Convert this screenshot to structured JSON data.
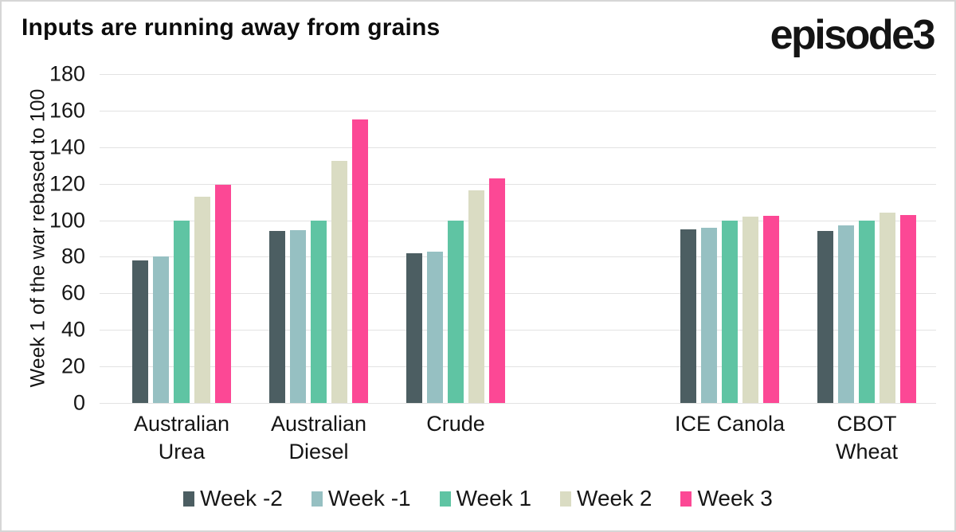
{
  "header": {
    "title": "Inputs are running away from grains",
    "logo_text": "episode3"
  },
  "palette": {
    "background": "#FFFFFF",
    "border": "#D6D6D6",
    "gridline": "#E2E2E2",
    "text": "#141414"
  },
  "chart_data": {
    "type": "bar",
    "title": "Inputs are running away from grains",
    "xlabel": "",
    "ylabel": "Week 1 of the war rebased to 100",
    "ylim": [
      0,
      180
    ],
    "ytick_step": 20,
    "grid": "horizontal",
    "legend_position": "bottom",
    "categories": [
      {
        "name": "Australian Urea",
        "label_lines": [
          "Australian",
          "Urea"
        ]
      },
      {
        "name": "Australian Diesel",
        "label_lines": [
          "Australian",
          "Diesel"
        ]
      },
      {
        "name": "Crude",
        "label_lines": [
          "Crude"
        ]
      },
      {
        "name": "",
        "label_lines": []
      },
      {
        "name": "ICE Canola",
        "label_lines": [
          "ICE Canola"
        ]
      },
      {
        "name": "CBOT Wheat",
        "label_lines": [
          "CBOT",
          "Wheat"
        ]
      }
    ],
    "series": [
      {
        "name": "Week -2",
        "color": "#4C5E62",
        "values": [
          78,
          94,
          82,
          null,
          95,
          94
        ]
      },
      {
        "name": "Week -1",
        "color": "#96C0C2",
        "values": [
          80,
          94.5,
          83,
          null,
          96,
          97
        ]
      },
      {
        "name": "Week 1",
        "color": "#5FC4A3",
        "values": [
          100,
          100,
          100,
          null,
          100,
          100
        ]
      },
      {
        "name": "Week 2",
        "color": "#DADCC3",
        "values": [
          113,
          132.5,
          116.5,
          null,
          102,
          104
        ]
      },
      {
        "name": "Week 3",
        "color": "#FC4895",
        "values": [
          119.5,
          155,
          123,
          null,
          102.5,
          103
        ]
      }
    ]
  }
}
